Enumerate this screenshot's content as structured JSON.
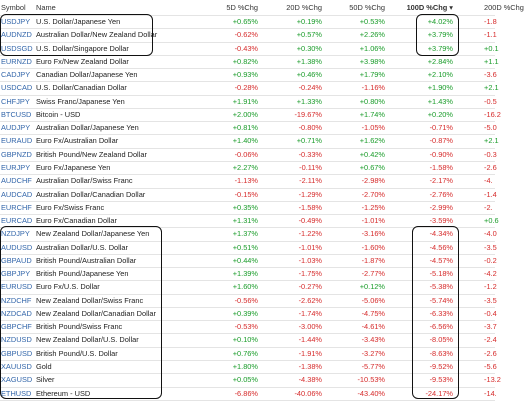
{
  "table": {
    "columns": [
      "Symbol",
      "Name",
      "5D %Chg",
      "20D %Chg",
      "50D %Chg",
      "100D %Chg ▾",
      "200D %Chg"
    ],
    "rows": [
      [
        "USDJPY",
        "U.S. Dollar/Japanese Yen",
        "+0.65%",
        "+0.19%",
        "+0.53%",
        "+4.02%",
        "-1.8"
      ],
      [
        "AUDNZD",
        "Australian Dollar/New Zealand Dollar",
        "-0.62%",
        "+0.57%",
        "+2.26%",
        "+3.79%",
        "-1.1"
      ],
      [
        "USDSGD",
        "U.S. Dollar/Singapore Dollar",
        "-0.43%",
        "+0.30%",
        "+1.06%",
        "+3.79%",
        "+0.1"
      ],
      [
        "EURNZD",
        "Euro Fx/New Zealand Dollar",
        "+0.82%",
        "+1.38%",
        "+3.98%",
        "+2.84%",
        "+1.1"
      ],
      [
        "CADJPY",
        "Canadian Dollar/Japanese Yen",
        "+0.93%",
        "+0.46%",
        "+1.79%",
        "+2.10%",
        "-3.6"
      ],
      [
        "USDCAD",
        "U.S. Dollar/Canadian Dollar",
        "-0.28%",
        "-0.24%",
        "-1.16%",
        "+1.90%",
        "+2.1"
      ],
      [
        "CHFJPY",
        "Swiss Franc/Japanese Yen",
        "+1.91%",
        "+1.33%",
        "+0.80%",
        "+1.43%",
        "-0.5"
      ],
      [
        "BTCUSD",
        "Bitcoin - USD",
        "+2.00%",
        "-19.67%",
        "+1.74%",
        "+0.20%",
        "-16.2"
      ],
      [
        "AUDJPY",
        "Australian Dollar/Japanese Yen",
        "+0.81%",
        "-0.80%",
        "-1.05%",
        "-0.71%",
        "-5.0"
      ],
      [
        "EURAUD",
        "Euro Fx/Australian Dollar",
        "+1.40%",
        "+0.71%",
        "+1.62%",
        "-0.87%",
        "+2.1"
      ],
      [
        "GBPNZD",
        "British Pound/New Zealand Dollar",
        "-0.06%",
        "-0.33%",
        "+0.42%",
        "-0.90%",
        "-0.3"
      ],
      [
        "EURJPY",
        "Euro Fx/Japanese Yen",
        "+2.27%",
        "-0.11%",
        "+0.67%",
        "-1.58%",
        "-2.6"
      ],
      [
        "AUDCHF",
        "Australian Dollar/Swiss Franc",
        "-1.13%",
        "-2.11%",
        "-2.98%",
        "-2.17%",
        "-4."
      ],
      [
        "AUDCAD",
        "Australian Dollar/Canadian Dollar",
        "-0.15%",
        "-1.29%",
        "-2.70%",
        "-2.76%",
        "-1.4"
      ],
      [
        "EURCHF",
        "Euro Fx/Swiss Franc",
        "+0.35%",
        "-1.58%",
        "-1.25%",
        "-2.99%",
        "-2."
      ],
      [
        "EURCAD",
        "Euro Fx/Canadian Dollar",
        "+1.31%",
        "-0.49%",
        "-1.01%",
        "-3.59%",
        "+0.6"
      ],
      [
        "NZDJPY",
        "New Zealand Dollar/Japanese Yen",
        "+1.37%",
        "-1.22%",
        "-3.16%",
        "-4.34%",
        "-4.0"
      ],
      [
        "AUDUSD",
        "Australian Dollar/U.S. Dollar",
        "+0.51%",
        "-1.01%",
        "-1.60%",
        "-4.56%",
        "-3.5"
      ],
      [
        "GBPAUD",
        "British Pound/Australian Dollar",
        "+0.44%",
        "-1.03%",
        "-1.87%",
        "-4.57%",
        "-0.2"
      ],
      [
        "GBPJPY",
        "British Pound/Japanese Yen",
        "+1.39%",
        "-1.75%",
        "-2.77%",
        "-5.18%",
        "-4.2"
      ],
      [
        "EURUSD",
        "Euro Fx/U.S. Dollar",
        "+1.60%",
        "-0.27%",
        "+0.12%",
        "-5.38%",
        "-1.2"
      ],
      [
        "NZDCHF",
        "New Zealand Dollar/Swiss Franc",
        "-0.56%",
        "-2.62%",
        "-5.06%",
        "-5.74%",
        "-3.5"
      ],
      [
        "NZDCAD",
        "New Zealand Dollar/Canadian Dollar",
        "+0.39%",
        "-1.74%",
        "-4.75%",
        "-6.33%",
        "-0.4"
      ],
      [
        "GBPCHF",
        "British Pound/Swiss Franc",
        "-0.53%",
        "-3.00%",
        "-4.61%",
        "-6.56%",
        "-3.7"
      ],
      [
        "NZDUSD",
        "New Zealand Dollar/U.S. Dollar",
        "+0.10%",
        "-1.44%",
        "-3.43%",
        "-8.05%",
        "-2.4"
      ],
      [
        "GBPUSD",
        "British Pound/U.S. Dollar",
        "+0.76%",
        "-1.91%",
        "-3.27%",
        "-8.63%",
        "-2.6"
      ],
      [
        "XAUUSD",
        "Gold",
        "+1.80%",
        "-1.38%",
        "-5.77%",
        "-9.52%",
        "-5.6"
      ],
      [
        "XAGUSD",
        "Silver",
        "+0.05%",
        "-4.38%",
        "-10.53%",
        "-9.53%",
        "-13.2"
      ],
      [
        "ETHUSD",
        "Ethereum - USD",
        "-6.86%",
        "-40.06%",
        "-43.40%",
        "-24.17%",
        "-14."
      ]
    ]
  }
}
